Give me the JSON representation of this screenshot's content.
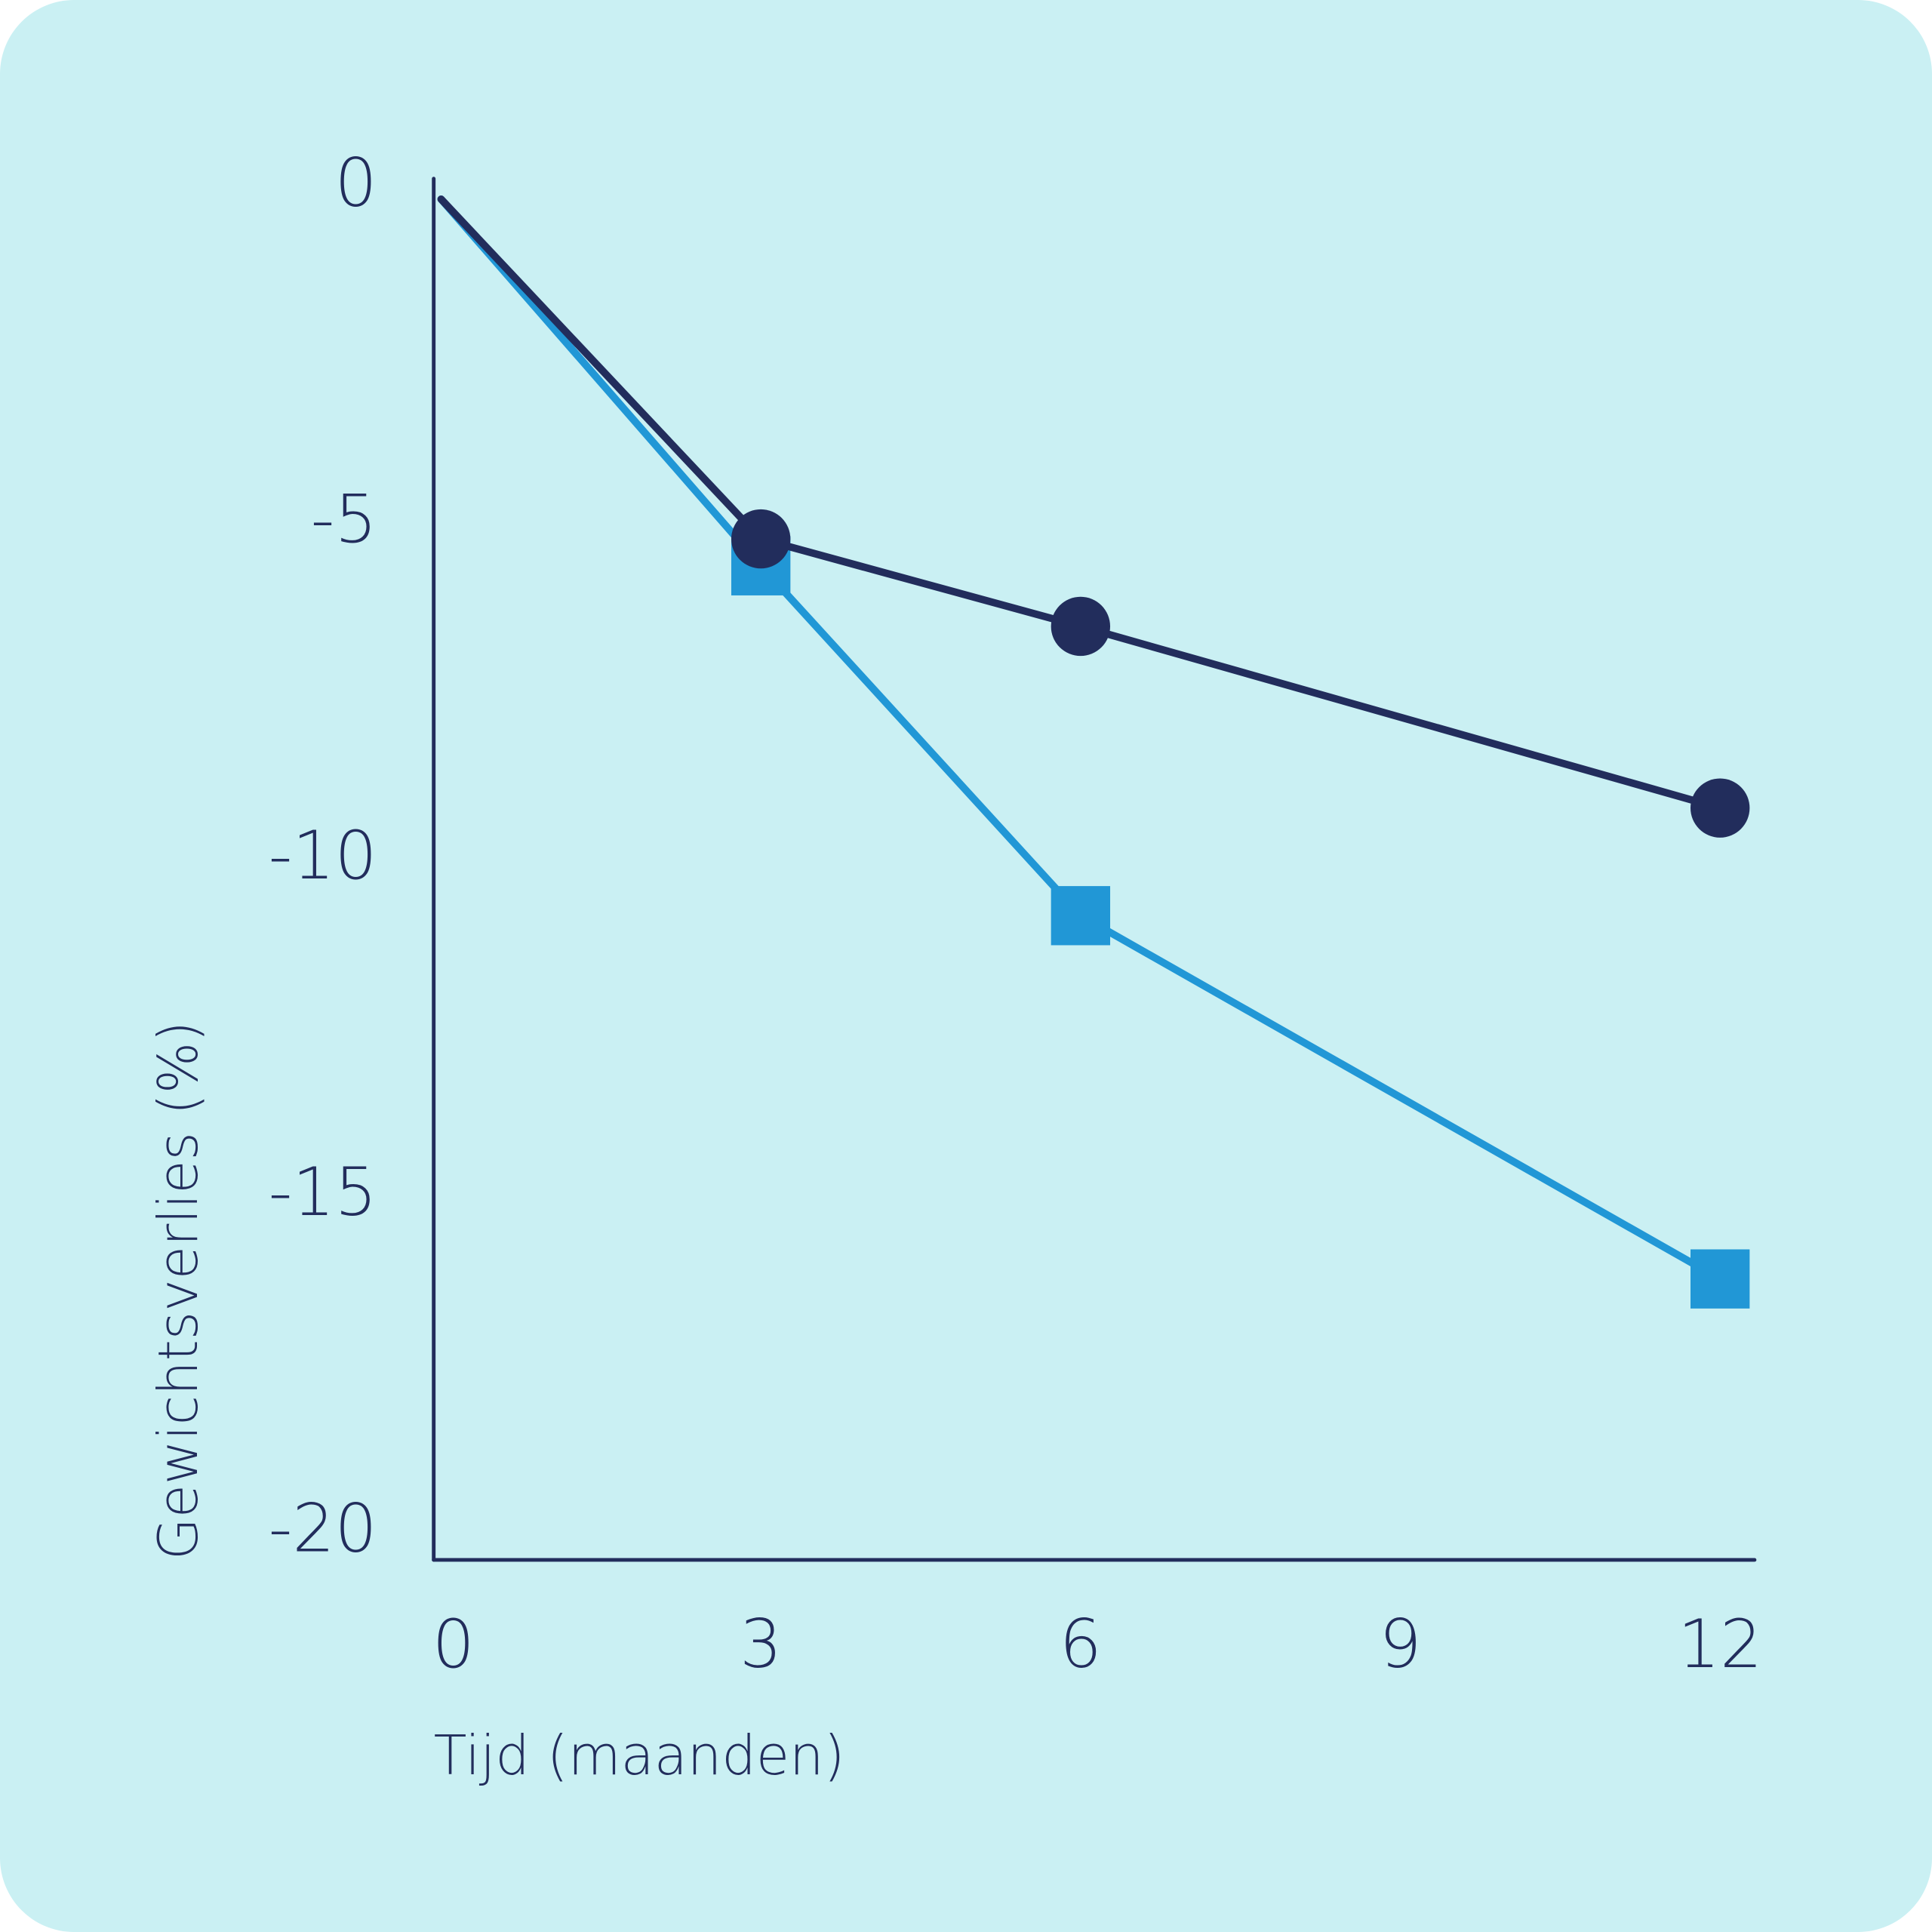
{
  "chart_data": {
    "type": "line",
    "title": "",
    "xlabel": "Tijd (maanden)",
    "ylabel": "Gewichtsverlies (%)",
    "xlim": [
      0,
      12
    ],
    "ylim": [
      -20,
      0
    ],
    "xticks": [
      "0",
      "3",
      "6",
      "9",
      "12"
    ],
    "xtick_values": [
      0,
      3,
      6,
      9,
      12
    ],
    "yticks": [
      "0",
      "-5",
      "-10",
      "-15",
      "-20"
    ],
    "ytick_values": [
      0,
      -5,
      -10,
      -15,
      -20
    ],
    "grid": false,
    "series": [
      {
        "name": "dark-circle-series",
        "color": "#222d5c",
        "marker": "circle",
        "x": [
          0,
          3,
          6,
          12
        ],
        "y": [
          -0.25,
          -5.3,
          -6.6,
          -9.3
        ]
      },
      {
        "name": "blue-square-series",
        "color": "#2197d6",
        "marker": "square",
        "x": [
          0,
          3,
          6,
          12
        ],
        "y": [
          -0.25,
          -5.7,
          -10.9,
          -16.3
        ]
      }
    ]
  }
}
